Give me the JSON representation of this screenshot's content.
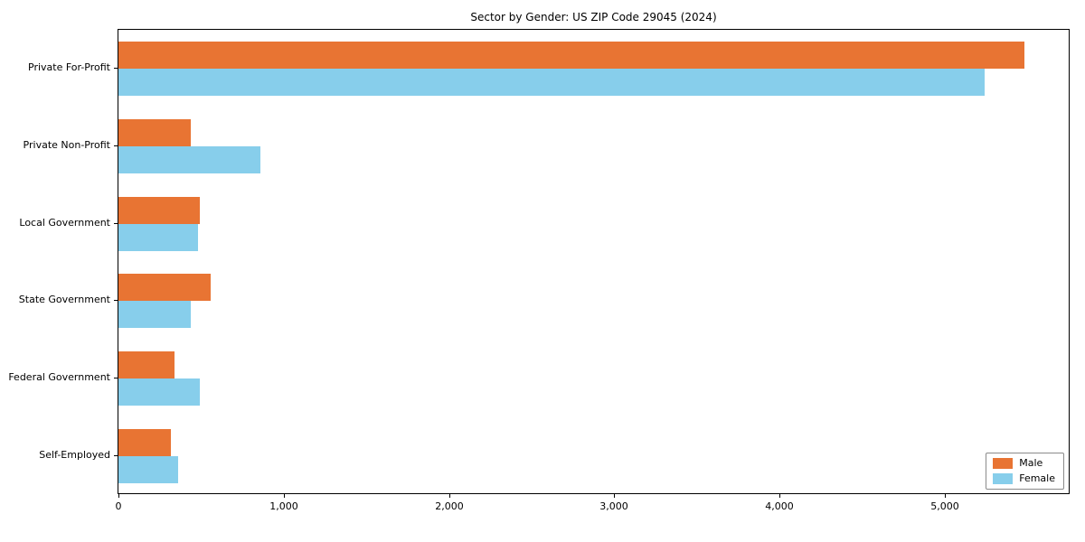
{
  "chart_data": {
    "type": "bar",
    "orientation": "horizontal",
    "title": "Sector by Gender: US ZIP Code 29045 (2024)",
    "categories": [
      "Private For-Profit",
      "Private Non-Profit",
      "Local Government",
      "State Government",
      "Federal Government",
      "Self-Employed"
    ],
    "series": [
      {
        "name": "Male",
        "color": "#E87433",
        "values": [
          5480,
          440,
          490,
          560,
          340,
          320
        ]
      },
      {
        "name": "Female",
        "color": "#87CEEB",
        "values": [
          5240,
          860,
          480,
          440,
          490,
          360
        ]
      }
    ],
    "xlabel": "",
    "ylabel": "",
    "xlim": [
      0,
      5750
    ],
    "xticks": [
      0,
      1000,
      2000,
      3000,
      4000,
      5000
    ],
    "xtick_labels": [
      "0",
      "1,000",
      "2,000",
      "3,000",
      "4,000",
      "5,000"
    ],
    "legend_position": "lower right",
    "grid": false,
    "background_color": "#ffffff",
    "axis_color": "#000000"
  }
}
